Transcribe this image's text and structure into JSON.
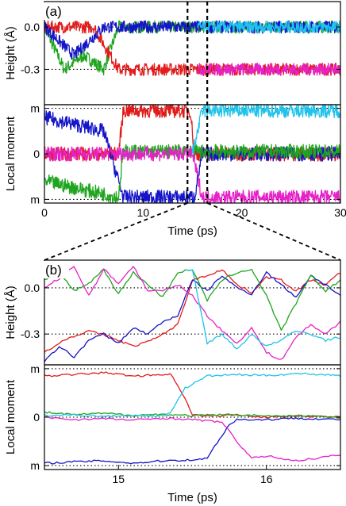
{
  "colors": {
    "green": "#1fa51f",
    "red": "#e21b1b",
    "blue": "#1414c8",
    "magenta": "#e621c8",
    "cyan": "#1fc3ea",
    "dark_red": "#a01010"
  },
  "chart_data": [
    {
      "type": "line",
      "panel_label": "(a)",
      "subplot": "height",
      "ylabel": "Height (Å)",
      "x_range": [
        0,
        30
      ],
      "y_ticks": [
        "0.0",
        "-0.3"
      ],
      "y_tick_values": [
        0.0,
        -0.3
      ],
      "reference_lines": [
        0.0,
        -0.3
      ],
      "ylim": [
        -0.55,
        0.18
      ],
      "series": [
        {
          "color": "green",
          "x": [
            0,
            2,
            4,
            6,
            7.5,
            10,
            14,
            15,
            20,
            25,
            30
          ],
          "y": [
            0.0,
            -0.3,
            -0.2,
            -0.3,
            0.0,
            0.0,
            0.0,
            0.0,
            0.0,
            0.0,
            0.0
          ]
        },
        {
          "color": "red",
          "x": [
            0,
            5,
            7.5,
            10,
            14,
            15,
            20,
            25,
            30
          ],
          "y": [
            0.0,
            0.0,
            -0.3,
            -0.3,
            -0.3,
            -0.3,
            -0.3,
            -0.3,
            -0.3
          ]
        },
        {
          "color": "blue",
          "x": [
            0,
            3,
            6,
            8,
            10,
            14,
            15,
            20,
            25,
            30
          ],
          "y": [
            0.0,
            -0.2,
            0.0,
            0.0,
            0.0,
            0.0,
            0.0,
            0.0,
            0.0,
            0.0
          ]
        },
        {
          "color": "magenta",
          "x": [
            15.5,
            20,
            25,
            30
          ],
          "y": [
            -0.3,
            -0.3,
            -0.3,
            -0.3
          ]
        },
        {
          "color": "cyan",
          "x": [
            15.5,
            20,
            25,
            30
          ],
          "y": [
            0.0,
            0.0,
            0.0,
            0.0
          ]
        }
      ]
    },
    {
      "type": "line",
      "subplot": "local moment",
      "ylabel": "Local moment",
      "xlabel": "Time (ps)",
      "x_range": [
        0,
        30
      ],
      "x_ticks": [
        "0",
        "10",
        "20",
        "30"
      ],
      "x_tick_values": [
        0,
        10,
        20,
        30
      ],
      "y_ticks": [
        "m",
        "0",
        "m"
      ],
      "y_tick_values": [
        1,
        0,
        -1
      ],
      "reference_lines": [
        1,
        0,
        -1
      ],
      "ylim": [
        -1.08,
        1.08
      ],
      "series": [
        {
          "color": "red",
          "x": [
            0,
            7.5,
            8,
            14,
            14.8,
            15.2,
            30
          ],
          "y": [
            0,
            0,
            0.95,
            0.95,
            0.95,
            0.0,
            0.0
          ]
        },
        {
          "color": "blue",
          "x": [
            0,
            6,
            8,
            14,
            15.2,
            16,
            30
          ],
          "y": [
            0.8,
            0.5,
            -0.95,
            -0.95,
            -0.95,
            0.0,
            0.0
          ]
        },
        {
          "color": "green",
          "x": [
            0,
            7.5,
            8,
            30
          ],
          "y": [
            -0.6,
            -0.95,
            0.05,
            0.05
          ]
        },
        {
          "color": "magenta",
          "x": [
            0,
            15,
            16,
            30
          ],
          "y": [
            0.0,
            0.0,
            -0.95,
            -0.95
          ]
        },
        {
          "color": "cyan",
          "x": [
            15,
            16,
            30
          ],
          "y": [
            0.0,
            0.95,
            0.95
          ]
        }
      ],
      "zoom_window": [
        14.5,
        16.5
      ]
    },
    {
      "type": "line",
      "panel_label": "(b)",
      "subplot": "height",
      "ylabel": "Height (Å)",
      "x_range": [
        14.5,
        16.5
      ],
      "y_ticks": [
        "0.0",
        "-0.3"
      ],
      "y_tick_values": [
        0.0,
        -0.3
      ],
      "reference_lines": [
        0.0,
        -0.3
      ],
      "ylim": [
        -0.5,
        0.18
      ],
      "series": [
        {
          "color": "red",
          "x": [
            14.5,
            14.65,
            14.8,
            14.95,
            15.1,
            15.25,
            15.4,
            15.5,
            15.6,
            15.7,
            15.8,
            15.9,
            16.0,
            16.1,
            16.2,
            16.3,
            16.4,
            16.5
          ],
          "y": [
            -0.42,
            -0.33,
            -0.28,
            -0.32,
            -0.38,
            -0.33,
            -0.24,
            0.05,
            0.08,
            0.12,
            0.02,
            -0.03,
            0.07,
            0.05,
            -0.02,
            0.05,
            0.02,
            0.1
          ]
        },
        {
          "color": "blue",
          "x": [
            14.5,
            14.6,
            14.7,
            14.8,
            14.9,
            15.0,
            15.1,
            15.2,
            15.3,
            15.4,
            15.5,
            15.6,
            15.7,
            15.8,
            15.9,
            16.0,
            16.1,
            16.2,
            16.3,
            16.4,
            16.5
          ],
          "y": [
            -0.48,
            -0.38,
            -0.45,
            -0.34,
            -0.3,
            -0.36,
            -0.26,
            -0.3,
            -0.22,
            -0.18,
            0.05,
            -0.02,
            0.08,
            0.0,
            -0.04,
            0.1,
            0.02,
            -0.06,
            0.08,
            0.02,
            -0.05
          ]
        },
        {
          "color": "green",
          "x": [
            14.5,
            14.6,
            14.7,
            14.8,
            14.9,
            15.0,
            15.1,
            15.2,
            15.3,
            15.4,
            15.5,
            15.6,
            15.7,
            15.8,
            15.9,
            16.0,
            16.1,
            16.2,
            16.3,
            16.4,
            16.5
          ],
          "y": [
            0.05,
            0.1,
            -0.02,
            0.03,
            0.12,
            -0.04,
            0.1,
            0.02,
            -0.06,
            0.1,
            0.12,
            -0.08,
            0.05,
            0.1,
            0.12,
            -0.05,
            -0.28,
            -0.1,
            0.08,
            -0.02,
            0.05
          ]
        },
        {
          "color": "magenta",
          "x": [
            14.5,
            14.6,
            14.7,
            14.8,
            14.9,
            15.0,
            15.1,
            15.2,
            15.3,
            15.4,
            15.5,
            15.6,
            15.7,
            15.8,
            15.9,
            16.0,
            16.1,
            16.2,
            16.3,
            16.4,
            16.5
          ],
          "y": [
            0.0,
            0.06,
            0.14,
            -0.05,
            0.12,
            0.03,
            0.14,
            -0.02,
            -0.02,
            0.02,
            -0.05,
            -0.18,
            -0.28,
            -0.36,
            -0.26,
            -0.42,
            -0.47,
            -0.32,
            -0.24,
            -0.3,
            -0.22
          ]
        },
        {
          "color": "cyan",
          "x": [
            15.45,
            15.5,
            15.6,
            15.7,
            15.8,
            15.9,
            16.0,
            16.1,
            16.2,
            16.3,
            16.4,
            16.5
          ],
          "y": [
            0.12,
            0.12,
            -0.36,
            -0.3,
            -0.4,
            -0.3,
            -0.38,
            -0.34,
            -0.28,
            -0.3,
            -0.34,
            -0.32
          ]
        }
      ]
    },
    {
      "type": "line",
      "subplot": "local moment",
      "ylabel": "Local moment",
      "xlabel": "Time (ps)",
      "x_range": [
        14.5,
        16.5
      ],
      "x_ticks": [
        "15",
        "16"
      ],
      "x_tick_values": [
        15,
        16
      ],
      "y_ticks": [
        "m",
        "0",
        "m"
      ],
      "y_tick_values": [
        1,
        0,
        -1
      ],
      "reference_lines": [
        1,
        0,
        -1
      ],
      "ylim": [
        -1.08,
        1.08
      ],
      "series": [
        {
          "color": "red",
          "x": [
            14.5,
            14.7,
            14.9,
            15.1,
            15.3,
            15.35,
            15.45,
            15.5,
            15.6,
            15.8,
            16.0,
            16.2,
            16.5
          ],
          "y": [
            0.85,
            0.88,
            0.92,
            0.85,
            0.88,
            0.9,
            0.4,
            0.05,
            0.02,
            0.05,
            0.0,
            0.03,
            0.0
          ]
        },
        {
          "color": "blue",
          "x": [
            14.5,
            14.7,
            14.9,
            15.1,
            15.3,
            15.5,
            15.6,
            15.65,
            15.75,
            15.8,
            16.0,
            16.2,
            16.5
          ],
          "y": [
            -0.95,
            -0.92,
            -0.9,
            -0.95,
            -0.9,
            -0.88,
            -0.85,
            -0.6,
            -0.15,
            -0.05,
            -0.05,
            -0.02,
            -0.05
          ]
        },
        {
          "color": "green",
          "x": [
            14.5,
            14.7,
            14.9,
            15.1,
            15.3,
            15.5,
            15.7,
            15.9,
            16.1,
            16.3,
            16.5
          ],
          "y": [
            0.1,
            0.05,
            0.08,
            0.04,
            0.06,
            0.03,
            0.05,
            0.04,
            0.02,
            0.03,
            -0.02
          ]
        },
        {
          "color": "magenta",
          "x": [
            14.5,
            14.7,
            14.9,
            15.1,
            15.3,
            15.5,
            15.7,
            15.8,
            15.9,
            16.0,
            16.2,
            16.4,
            16.5
          ],
          "y": [
            0.0,
            -0.05,
            -0.03,
            -0.06,
            -0.02,
            -0.05,
            -0.1,
            -0.5,
            -0.85,
            -0.8,
            -0.9,
            -0.82,
            -0.78
          ]
        },
        {
          "color": "cyan",
          "x": [
            14.5,
            14.7,
            14.9,
            15.1,
            15.3,
            15.35,
            15.45,
            15.6,
            15.8,
            16.0,
            16.2,
            16.4,
            16.5
          ],
          "y": [
            0.03,
            0.05,
            0.02,
            0.04,
            0.02,
            0.1,
            0.6,
            0.85,
            0.88,
            0.86,
            0.9,
            0.88,
            0.86
          ]
        }
      ]
    }
  ]
}
